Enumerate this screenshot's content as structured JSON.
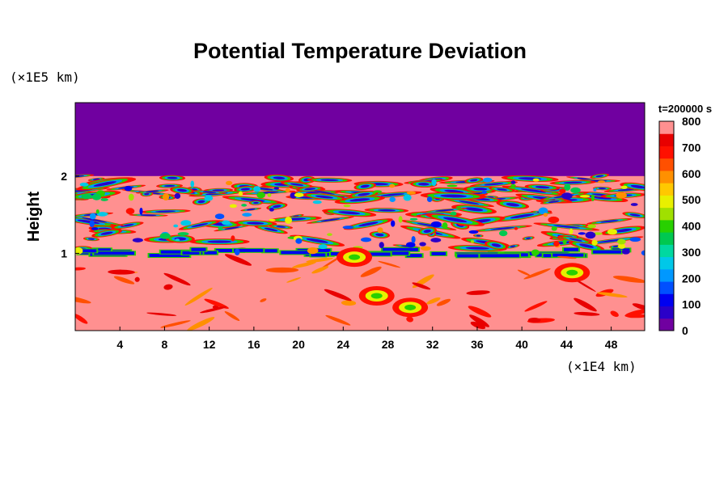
{
  "chart_data": {
    "type": "heatmap",
    "title": "Potential Temperature Deviation",
    "ylabel": "Height",
    "x_unit": "(×1E4 km)",
    "y_unit": "(×1E5 km)",
    "time_label": "t=200000 s",
    "x_ticks": [
      4,
      8,
      12,
      16,
      20,
      24,
      28,
      32,
      36,
      40,
      44,
      48
    ],
    "y_ticks": [
      1,
      2
    ],
    "xlim": [
      0,
      51
    ],
    "ylim": [
      0,
      2.95
    ],
    "colorbar": {
      "min": 0,
      "max": 800,
      "ticks": [
        0,
        100,
        200,
        300,
        400,
        500,
        600,
        700,
        800
      ],
      "levels": [
        {
          "value": 0,
          "color": "#7000a0"
        },
        {
          "value": 50,
          "color": "#2a00c8"
        },
        {
          "value": 100,
          "color": "#0000f0"
        },
        {
          "value": 150,
          "color": "#0050ff"
        },
        {
          "value": 200,
          "color": "#0098ff"
        },
        {
          "value": 250,
          "color": "#00c8e8"
        },
        {
          "value": 300,
          "color": "#00d8a0"
        },
        {
          "value": 350,
          "color": "#00c850"
        },
        {
          "value": 400,
          "color": "#28d000"
        },
        {
          "value": 450,
          "color": "#a0e000"
        },
        {
          "value": 500,
          "color": "#e8f000"
        },
        {
          "value": 550,
          "color": "#ffc800"
        },
        {
          "value": 600,
          "color": "#ff9000"
        },
        {
          "value": 650,
          "color": "#ff5000"
        },
        {
          "value": 700,
          "color": "#ff1000"
        },
        {
          "value": 750,
          "color": "#e80000"
        },
        {
          "value": 800,
          "color": "#ff9090"
        }
      ]
    },
    "field_summary": {
      "upper_layer_height_range": [
        2.0,
        2.95
      ],
      "upper_layer_value": 0,
      "lower_layer_value": 800,
      "mixing_zone_range": [
        1.0,
        2.0
      ]
    }
  }
}
